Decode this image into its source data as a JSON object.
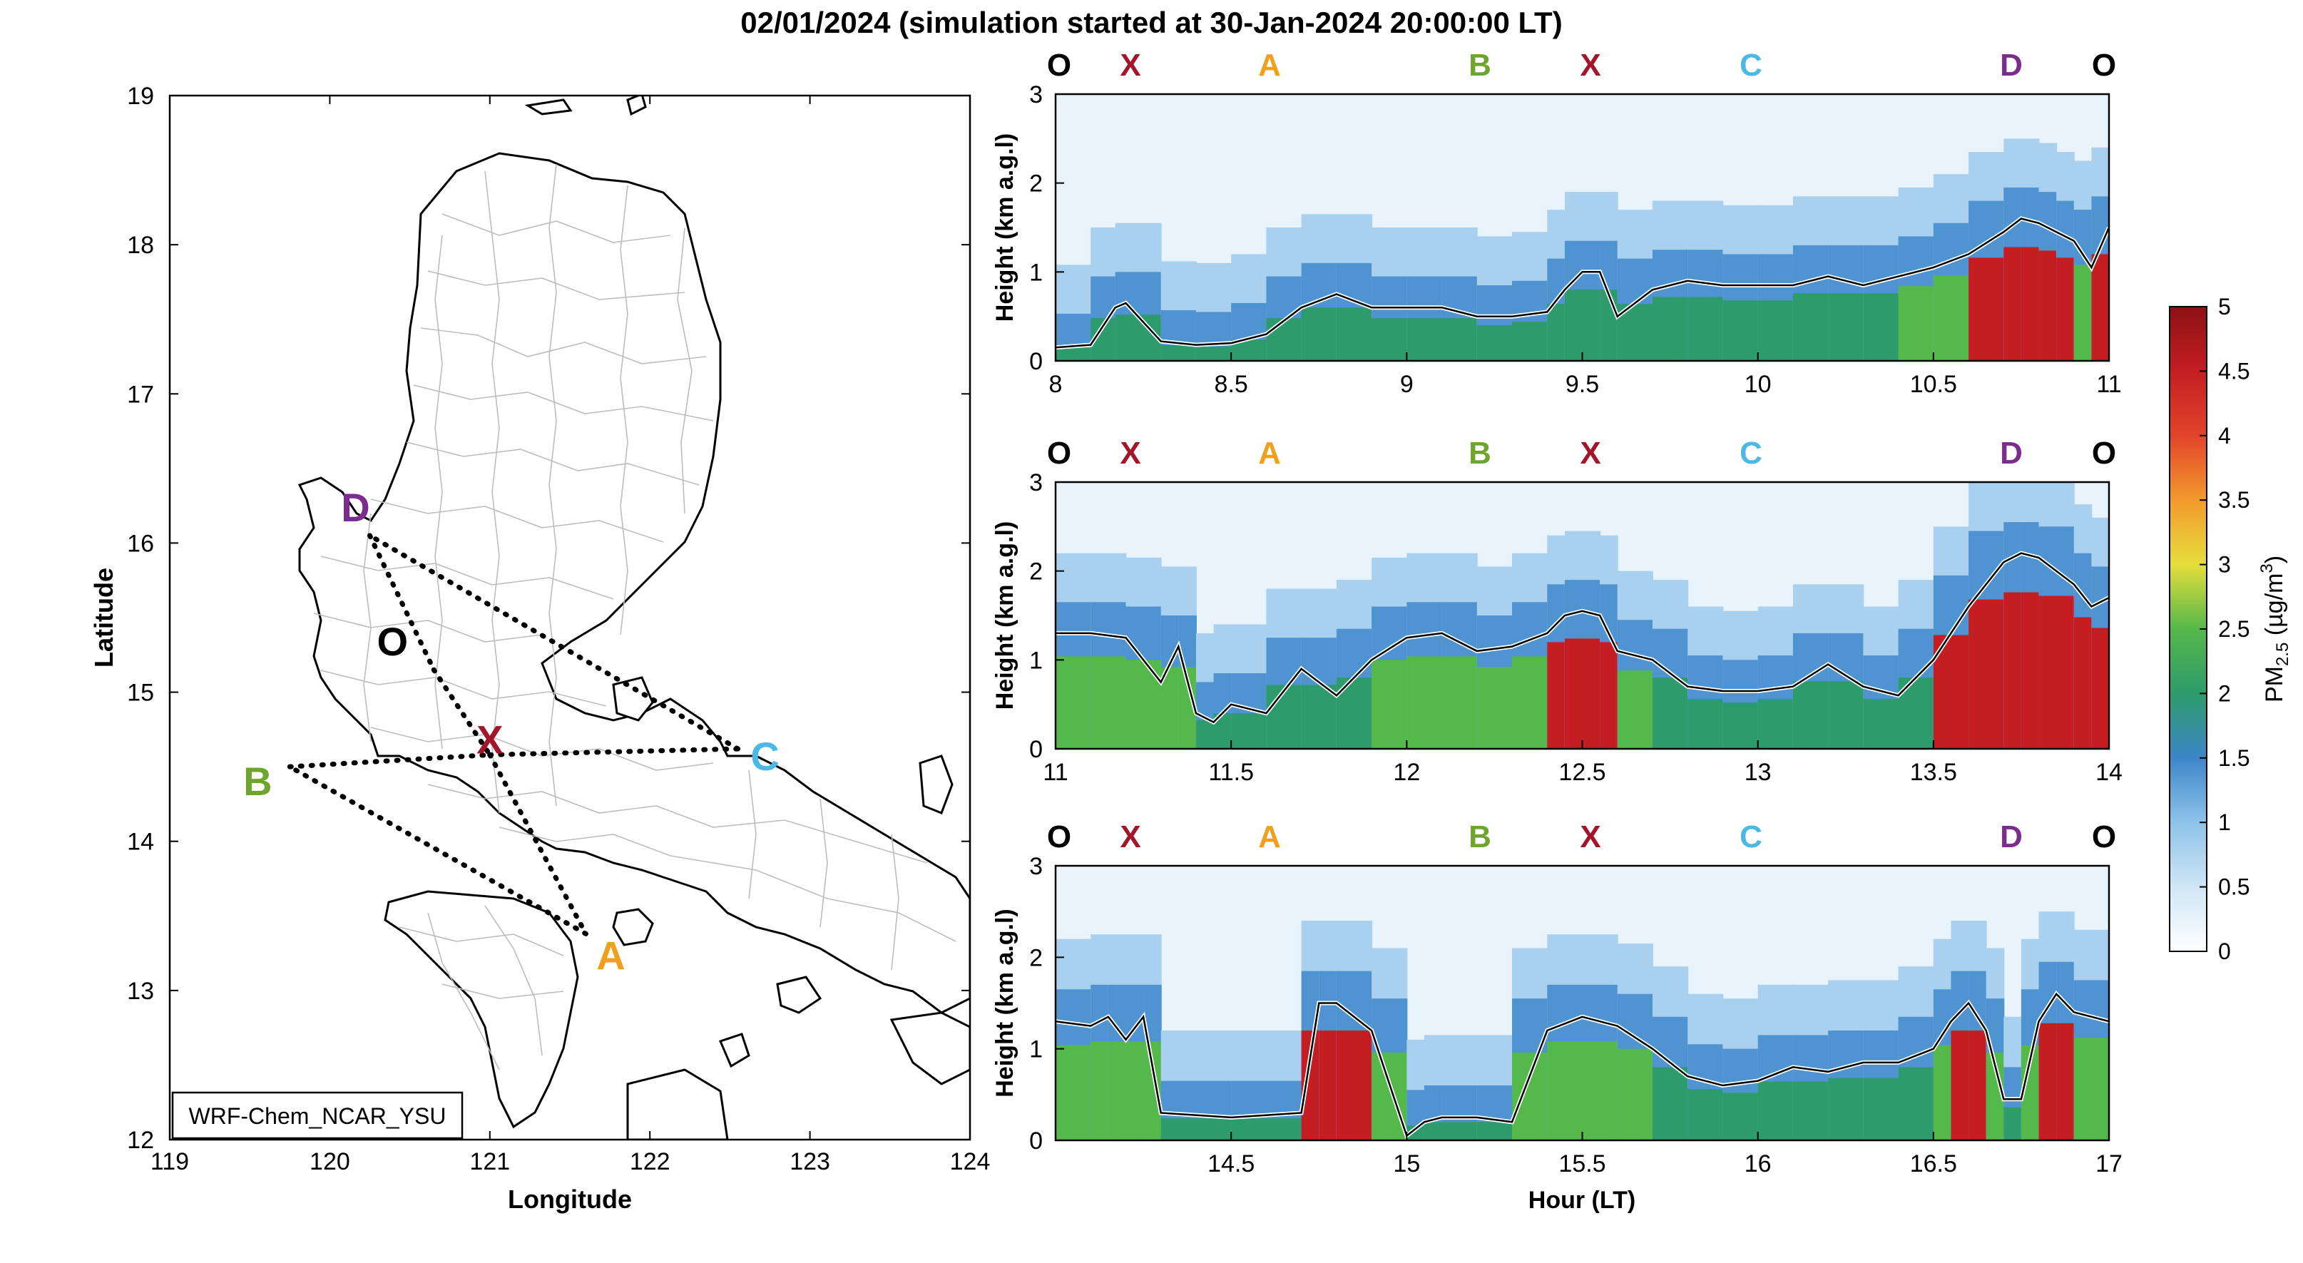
{
  "figure": {
    "title": "02/01/2024 (simulation started at 30-Jan-2024 20:00:00 LT)"
  },
  "map": {
    "xlabel": "Longitude",
    "ylabel": "Latitude",
    "xticks": [
      "119",
      "120",
      "121",
      "122",
      "123",
      "124"
    ],
    "yticks": [
      "12",
      "13",
      "14",
      "15",
      "16",
      "17",
      "18",
      "19"
    ],
    "xlim": [
      119,
      124
    ],
    "ylim": [
      12,
      19
    ],
    "model_label": "WRF-Chem_NCAR_YSU",
    "points": [
      {
        "label": "D",
        "lon": 120.25,
        "lat": 16.05,
        "color": "#7B2D8E"
      },
      {
        "label": "O",
        "lon": 120.65,
        "lat": 15.15,
        "color": "#000000"
      },
      {
        "label": "X",
        "lon": 121.0,
        "lat": 14.58,
        "color": "#A3152B"
      },
      {
        "label": "C",
        "lon": 122.55,
        "lat": 14.62,
        "color": "#4BB8E6"
      },
      {
        "label": "B",
        "lon": 119.75,
        "lat": 14.5,
        "color": "#6EA52E"
      },
      {
        "label": "A",
        "lon": 121.6,
        "lat": 13.38,
        "color": "#F0A01C"
      }
    ],
    "route": [
      "D",
      "O",
      "X",
      "A",
      "B",
      "X",
      "C",
      "D"
    ]
  },
  "colorbar": {
    "label": "PM2.5 (µg/m³)",
    "ticks": [
      "0",
      "0.5",
      "1",
      "1.5",
      "2",
      "2.5",
      "3",
      "3.5",
      "4",
      "4.5",
      "5"
    ],
    "range": [
      0,
      5
    ]
  },
  "panel_common": {
    "ylabel": "Height (km a.g.l)",
    "yticks": [
      "0",
      "1",
      "2",
      "3"
    ],
    "ylim": [
      0,
      3
    ],
    "xlabel_bottom": "Hour (LT)",
    "route_labels": [
      {
        "label": "O",
        "color": "#000000"
      },
      {
        "label": "X",
        "color": "#A3152B"
      },
      {
        "label": "A",
        "color": "#F0A01C"
      },
      {
        "label": "B",
        "color": "#6EA52E"
      },
      {
        "label": "X",
        "color": "#A3152B"
      },
      {
        "label": "C",
        "color": "#4BB8E6"
      },
      {
        "label": "D",
        "color": "#7B2D8E"
      },
      {
        "label": "O",
        "color": "#000000"
      }
    ]
  },
  "chart_data": [
    {
      "type": "heatmap",
      "name": "panel-1",
      "xlim": [
        8,
        11
      ],
      "xticks": [
        "8",
        "8.5",
        "9",
        "9.5",
        "10",
        "10.5",
        "11"
      ],
      "ylim": [
        0,
        3
      ],
      "pblh_x": [
        8.0,
        8.1,
        8.17,
        8.2,
        8.3,
        8.4,
        8.5,
        8.6,
        8.7,
        8.8,
        8.9,
        9.0,
        9.1,
        9.2,
        9.3,
        9.4,
        9.45,
        9.5,
        9.55,
        9.6,
        9.7,
        9.8,
        9.9,
        10.0,
        10.1,
        10.2,
        10.3,
        10.4,
        10.5,
        10.6,
        10.7,
        10.75,
        10.8,
        10.85,
        10.9,
        10.95,
        11.0
      ],
      "pblh_y": [
        0.15,
        0.18,
        0.6,
        0.65,
        0.22,
        0.18,
        0.2,
        0.3,
        0.6,
        0.75,
        0.6,
        0.6,
        0.6,
        0.5,
        0.5,
        0.55,
        0.8,
        1.0,
        1.0,
        0.5,
        0.8,
        0.9,
        0.85,
        0.85,
        0.85,
        0.95,
        0.85,
        0.95,
        1.05,
        1.2,
        1.45,
        1.6,
        1.55,
        1.45,
        1.35,
        1.05,
        1.5
      ]
    },
    {
      "type": "heatmap",
      "name": "panel-2",
      "xlim": [
        11,
        14
      ],
      "xticks": [
        "11",
        "11.5",
        "12",
        "12.5",
        "13",
        "13.5",
        "14"
      ],
      "ylim": [
        0,
        3
      ],
      "pblh_x": [
        11.0,
        11.1,
        11.2,
        11.3,
        11.35,
        11.4,
        11.45,
        11.5,
        11.6,
        11.7,
        11.8,
        11.9,
        12.0,
        12.1,
        12.2,
        12.3,
        12.4,
        12.45,
        12.5,
        12.55,
        12.6,
        12.7,
        12.8,
        12.9,
        13.0,
        13.1,
        13.2,
        13.3,
        13.4,
        13.5,
        13.6,
        13.7,
        13.75,
        13.8,
        13.9,
        13.95,
        14.0
      ],
      "pblh_y": [
        1.3,
        1.3,
        1.25,
        0.75,
        1.15,
        0.4,
        0.3,
        0.5,
        0.4,
        0.9,
        0.6,
        1.0,
        1.25,
        1.3,
        1.1,
        1.15,
        1.3,
        1.5,
        1.55,
        1.5,
        1.1,
        1.0,
        0.7,
        0.65,
        0.65,
        0.7,
        0.95,
        0.7,
        0.6,
        1.0,
        1.6,
        2.1,
        2.2,
        2.15,
        1.85,
        1.6,
        1.7
      ]
    },
    {
      "type": "heatmap",
      "name": "panel-3",
      "xlim": [
        14,
        17
      ],
      "xticks": [
        "14.5",
        "15",
        "15.5",
        "16",
        "16.5",
        "17"
      ],
      "ylim": [
        0,
        3
      ],
      "pblh_x": [
        14.0,
        14.1,
        14.15,
        14.2,
        14.25,
        14.3,
        14.5,
        14.7,
        14.75,
        14.8,
        14.9,
        15.0,
        15.05,
        15.1,
        15.2,
        15.3,
        15.4,
        15.5,
        15.6,
        15.7,
        15.8,
        15.9,
        16.0,
        16.1,
        16.2,
        16.3,
        16.4,
        16.5,
        16.55,
        16.6,
        16.65,
        16.7,
        16.75,
        16.8,
        16.85,
        16.9,
        17.0
      ],
      "pblh_y": [
        1.3,
        1.25,
        1.35,
        1.1,
        1.35,
        0.3,
        0.25,
        0.3,
        1.5,
        1.5,
        1.2,
        0.05,
        0.2,
        0.25,
        0.25,
        0.2,
        1.2,
        1.35,
        1.25,
        1.0,
        0.7,
        0.6,
        0.65,
        0.8,
        0.75,
        0.85,
        0.85,
        1.0,
        1.3,
        1.5,
        1.2,
        0.45,
        0.45,
        1.3,
        1.6,
        1.4,
        1.3
      ]
    }
  ]
}
